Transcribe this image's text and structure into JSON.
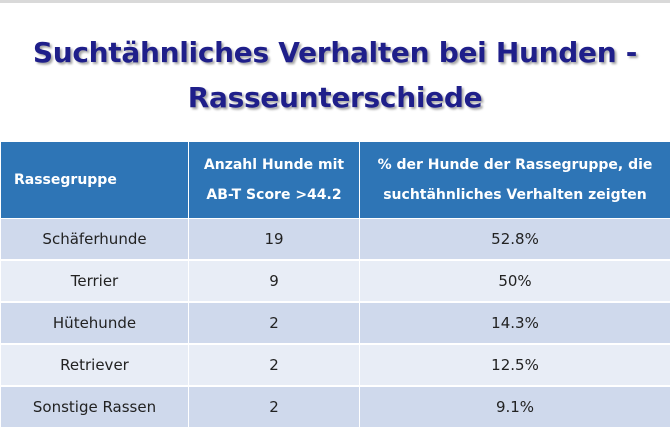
{
  "title": {
    "line1": "Suchtähnliches Verhalten bei Hunden -",
    "line2": "Rasseunterschiede"
  },
  "table": {
    "headers": {
      "col1": "Rassegruppe",
      "col2_line1": "Anzahl Hunde mit",
      "col2_line2": "AB-T Score >44.2",
      "col3_line1": "% der Hunde der Rassegruppe,  die",
      "col3_line2": "suchtähnliches Verhalten zeigten"
    },
    "rows": [
      {
        "group": "Schäferhunde",
        "count": "19",
        "percent": "52.8%"
      },
      {
        "group": "Terrier",
        "count": "9",
        "percent": "50%"
      },
      {
        "group": "Hütehunde",
        "count": "2",
        "percent": "14.3%"
      },
      {
        "group": "Retriever",
        "count": "2",
        "percent": "12.5%"
      },
      {
        "group": "Sonstige Rassen",
        "count": "2",
        "percent": "9.1%"
      }
    ]
  },
  "colors": {
    "title": "#1f1f8a",
    "header_bg": "#2e75b6",
    "row_dark": "#cfd9ec",
    "row_light": "#e8edf6"
  }
}
